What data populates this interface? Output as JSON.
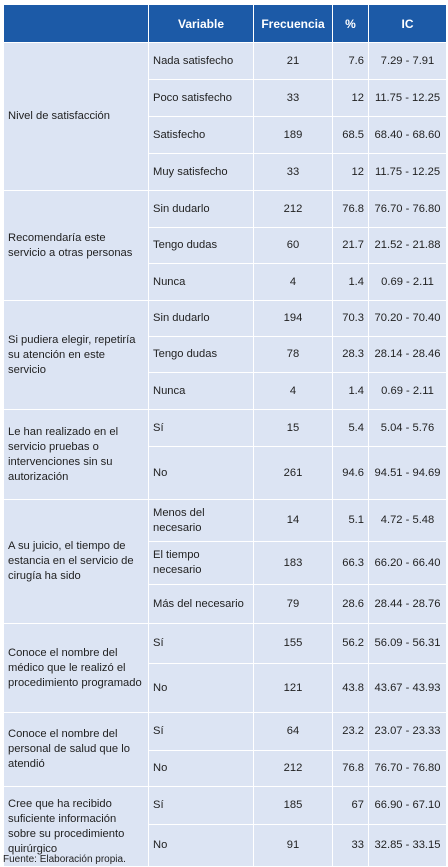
{
  "headers": {
    "variable": "Variable",
    "frecuencia": "Frecuencia",
    "pct": "%",
    "ic": "IC"
  },
  "groups": [
    {
      "variable": "Nivel de satisfacción",
      "rows": [
        {
          "cat": "Nada satisfecho",
          "freq": "21",
          "pct": "7.6",
          "ic": "7.29 - 7.91"
        },
        {
          "cat": "Poco satisfecho",
          "freq": "33",
          "pct": "12",
          "ic": "11.75 - 12.25"
        },
        {
          "cat": "Satisfecho",
          "freq": "189",
          "pct": "68.5",
          "ic": "68.40 - 68.60"
        },
        {
          "cat": "Muy satisfecho",
          "freq": "33",
          "pct": "12",
          "ic": "11.75 - 12.25"
        }
      ]
    },
    {
      "variable": "Recomendaría este servicio a otras personas",
      "rows": [
        {
          "cat": "Sin dudarlo",
          "freq": "212",
          "pct": "76.8",
          "ic": "76.70 - 76.80"
        },
        {
          "cat": "Tengo dudas",
          "freq": "60",
          "pct": "21.7",
          "ic": "21.52 - 21.88"
        },
        {
          "cat": "Nunca",
          "freq": "4",
          "pct": "1.4",
          "ic": "0.69 - 2.11"
        }
      ]
    },
    {
      "variable": "Si pudiera elegir, repetiría su atención en este servicio",
      "rows": [
        {
          "cat": "Sin dudarlo",
          "freq": "194",
          "pct": "70.3",
          "ic": "70.20 - 70.40"
        },
        {
          "cat": "Tengo dudas",
          "freq": "78",
          "pct": "28.3",
          "ic": "28.14 - 28.46"
        },
        {
          "cat": "Nunca",
          "freq": "4",
          "pct": "1.4",
          "ic": "0.69 - 2.11"
        }
      ]
    },
    {
      "variable": "Le han realizado en el servicio pruebas o intervenciones sin su autorización",
      "rows": [
        {
          "cat": "Sí",
          "freq": "15",
          "pct": "5.4",
          "ic": "5.04 - 5.76"
        },
        {
          "cat": "No",
          "freq": "261",
          "pct": "94.6",
          "ic": "94.51 - 94.69"
        }
      ]
    },
    {
      "variable": "A su juicio, el tiempo de estancia en el servicio de cirugía ha sido",
      "rows": [
        {
          "cat": "Menos del necesario",
          "freq": "14",
          "pct": "5.1",
          "ic": "4.72 - 5.48"
        },
        {
          "cat": "El tiempo necesario",
          "freq": "183",
          "pct": "66.3",
          "ic": "66.20 - 66.40"
        },
        {
          "cat": "Más del necesario",
          "freq": "79",
          "pct": "28.6",
          "ic": "28.44 - 28.76"
        }
      ]
    },
    {
      "variable": "Conoce el nombre del médico que le realizó el procedimiento programado",
      "rows": [
        {
          "cat": "Sí",
          "freq": "155",
          "pct": "56.2",
          "ic": "56.09 - 56.31"
        },
        {
          "cat": "No",
          "freq": "121",
          "pct": "43.8",
          "ic": "43.67 - 43.93"
        }
      ]
    },
    {
      "variable": "Conoce el nombre del personal de salud que lo atendió",
      "rows": [
        {
          "cat": "Sí",
          "freq": "64",
          "pct": "23.2",
          "ic": "23.07 - 23.33"
        },
        {
          "cat": "No",
          "freq": "212",
          "pct": "76.8",
          "ic": "76.70 - 76.80"
        }
      ]
    },
    {
      "variable": "Cree que ha recibido suficiente información sobre su procedimiento quirúrgico",
      "rows": [
        {
          "cat": "Sí",
          "freq": "185",
          "pct": "67",
          "ic": "66.90 - 67.10"
        },
        {
          "cat": "No",
          "freq": "91",
          "pct": "33",
          "ic": "32.85 - 33.15"
        }
      ]
    }
  ],
  "footer": "Fuente: Elaboración propia."
}
